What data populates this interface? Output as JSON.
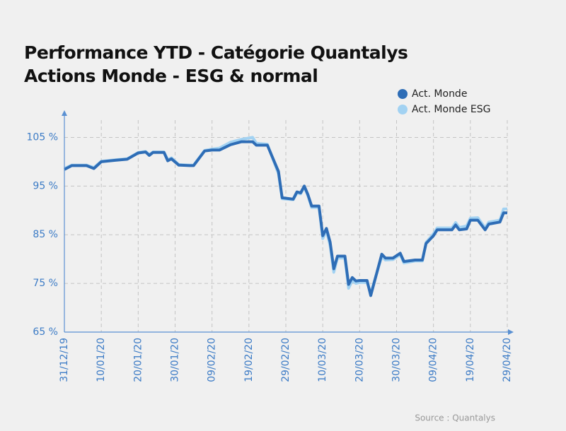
{
  "chart_data": {
    "type": "line",
    "title": [
      "Performance YTD - Catégorie Quantalys",
      "Actions Monde - ESG & normal"
    ],
    "source": "Source : Quantalys",
    "x": [
      "2019-12-31",
      "2020-01-02",
      "2020-01-06",
      "2020-01-08",
      "2020-01-10",
      "2020-01-14",
      "2020-01-17",
      "2020-01-20",
      "2020-01-22",
      "2020-01-23",
      "2020-01-24",
      "2020-01-27",
      "2020-01-28",
      "2020-01-29",
      "2020-01-31",
      "2020-02-03",
      "2020-02-04",
      "2020-02-07",
      "2020-02-09",
      "2020-02-11",
      "2020-02-14",
      "2020-02-17",
      "2020-02-20",
      "2020-02-21",
      "2020-02-24",
      "2020-02-27",
      "2020-02-28",
      "2020-03-02",
      "2020-03-03",
      "2020-03-04",
      "2020-03-05",
      "2020-03-06",
      "2020-03-07",
      "2020-03-09",
      "2020-03-10",
      "2020-03-11",
      "2020-03-12",
      "2020-03-13",
      "2020-03-14",
      "2020-03-16",
      "2020-03-17",
      "2020-03-18",
      "2020-03-19",
      "2020-03-20",
      "2020-03-22",
      "2020-03-23",
      "2020-03-26",
      "2020-03-27",
      "2020-03-29",
      "2020-03-31",
      "2020-04-01",
      "2020-04-04",
      "2020-04-06",
      "2020-04-07",
      "2020-04-09",
      "2020-04-10",
      "2020-04-14",
      "2020-04-15",
      "2020-04-16",
      "2020-04-18",
      "2020-04-19",
      "2020-04-21",
      "2020-04-23",
      "2020-04-24",
      "2020-04-27",
      "2020-04-28",
      "2020-04-29"
    ],
    "series": [
      {
        "name": "Act. Monde",
        "color": "#2e6db6",
        "values": [
          98.4,
          99.2,
          99.2,
          98.6,
          100.0,
          100.3,
          100.5,
          101.8,
          102.0,
          101.3,
          101.9,
          101.9,
          100.2,
          100.6,
          99.3,
          99.2,
          99.2,
          102.2,
          102.4,
          102.4,
          103.5,
          104.1,
          104.1,
          103.4,
          103.4,
          98.0,
          92.6,
          92.3,
          93.8,
          93.6,
          95.0,
          93.2,
          90.9,
          90.9,
          84.8,
          86.3,
          83.5,
          78.0,
          80.6,
          80.6,
          74.8,
          76.2,
          75.5,
          75.6,
          75.6,
          72.5,
          81.0,
          80.2,
          80.2,
          81.2,
          79.5,
          79.8,
          79.8,
          83.2,
          84.8,
          86.0,
          86.0,
          87.0,
          86.0,
          86.2,
          88.0,
          88.0,
          86.0,
          87.2,
          87.6,
          89.5,
          89.5
        ]
      },
      {
        "name": "Act. Monde ESG",
        "color": "#a2d2f2",
        "values": [
          98.6,
          99.3,
          99.3,
          98.8,
          100.1,
          100.4,
          100.6,
          101.9,
          102.1,
          101.5,
          102.0,
          102.0,
          100.4,
          100.8,
          99.4,
          99.3,
          99.3,
          102.3,
          102.6,
          102.8,
          104.0,
          104.6,
          105.0,
          103.8,
          103.6,
          97.5,
          92.4,
          92.2,
          93.6,
          93.4,
          94.8,
          93.0,
          90.6,
          90.6,
          84.2,
          85.8,
          82.8,
          77.3,
          80.2,
          80.2,
          74.0,
          75.6,
          75.0,
          75.2,
          75.2,
          73.0,
          80.5,
          79.8,
          79.9,
          80.9,
          79.2,
          79.6,
          79.6,
          83.4,
          85.2,
          86.4,
          86.4,
          87.5,
          86.5,
          86.8,
          88.4,
          88.5,
          86.4,
          87.6,
          88.0,
          90.3,
          90.3
        ]
      }
    ],
    "xlim": [
      "2019-12-31",
      "2020-04-29"
    ],
    "xticks": [
      {
        "value": "2019-12-31",
        "label": "31/12/19"
      },
      {
        "value": "2020-01-10",
        "label": "10/01/20"
      },
      {
        "value": "2020-01-20",
        "label": "20/01/20"
      },
      {
        "value": "2020-01-30",
        "label": "30/01/20"
      },
      {
        "value": "2020-02-09",
        "label": "09/02/20"
      },
      {
        "value": "2020-02-19",
        "label": "19/02/20"
      },
      {
        "value": "2020-02-29",
        "label": "29/02/20"
      },
      {
        "value": "2020-03-10",
        "label": "10/03/20"
      },
      {
        "value": "2020-03-20",
        "label": "20/03/20"
      },
      {
        "value": "2020-03-30",
        "label": "30/03/20"
      },
      {
        "value": "2020-04-09",
        "label": "09/04/20"
      },
      {
        "value": "2020-04-19",
        "label": "19/04/20"
      },
      {
        "value": "2020-04-29",
        "label": "29/04/20"
      }
    ],
    "ylim": [
      65,
      110
    ],
    "yticks": [
      {
        "value": 65,
        "label": "65 %"
      },
      {
        "value": 75,
        "label": "75 %"
      },
      {
        "value": 85,
        "label": "85 %"
      },
      {
        "value": 95,
        "label": "95 %"
      },
      {
        "value": 105,
        "label": "105 %"
      }
    ],
    "grid": true,
    "legend": "top-right"
  }
}
